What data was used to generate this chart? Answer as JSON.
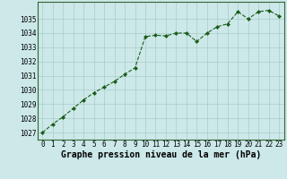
{
  "x": [
    0,
    1,
    2,
    3,
    4,
    5,
    6,
    7,
    8,
    9,
    10,
    11,
    12,
    13,
    14,
    15,
    16,
    17,
    18,
    19,
    20,
    21,
    22,
    23
  ],
  "y": [
    1027.0,
    1027.6,
    1028.1,
    1028.7,
    1029.3,
    1029.8,
    1030.2,
    1030.6,
    1031.1,
    1031.55,
    1033.75,
    1033.85,
    1033.8,
    1034.0,
    1034.0,
    1033.4,
    1034.0,
    1034.45,
    1034.65,
    1035.5,
    1035.0,
    1035.5,
    1035.6,
    1035.2
  ],
  "line_color": "#1a5c1a",
  "bg_color": "#cce8e8",
  "grid_color": "#aacccc",
  "xlabel": "Graphe pression niveau de la mer (hPa)",
  "ylim": [
    1026.5,
    1036.2
  ],
  "xlim": [
    -0.5,
    23.5
  ],
  "yticks": [
    1027,
    1028,
    1029,
    1030,
    1031,
    1032,
    1033,
    1034,
    1035
  ],
  "xticks": [
    0,
    1,
    2,
    3,
    4,
    5,
    6,
    7,
    8,
    9,
    10,
    11,
    12,
    13,
    14,
    15,
    16,
    17,
    18,
    19,
    20,
    21,
    22,
    23
  ],
  "tick_fontsize": 5.5,
  "xlabel_fontsize": 7.0,
  "marker": "D",
  "marker_size": 2.0,
  "linewidth": 0.8
}
